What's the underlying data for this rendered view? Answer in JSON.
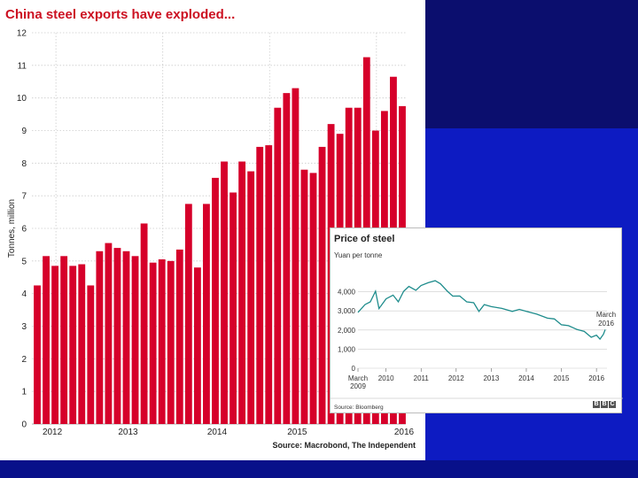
{
  "chart_data": [
    {
      "type": "bar",
      "title": "China steel exports have exploded...",
      "ylabel": "Tonnes, million",
      "xlabel": "",
      "ylim": [
        0,
        12
      ],
      "yticks": [
        0,
        1,
        2,
        3,
        4,
        5,
        6,
        7,
        8,
        9,
        10,
        11,
        12
      ],
      "xticklabels": [
        "2012",
        "2013",
        "2014",
        "2015",
        "2016"
      ],
      "source": "Source: Macrobond, The Independent",
      "values": [
        4.25,
        5.15,
        4.85,
        5.15,
        4.85,
        4.9,
        4.25,
        5.3,
        5.55,
        5.4,
        5.3,
        5.15,
        6.15,
        4.95,
        5.05,
        5.0,
        5.35,
        6.75,
        4.8,
        6.75,
        7.55,
        8.05,
        7.1,
        8.05,
        7.75,
        8.5,
        8.55,
        9.7,
        10.15,
        10.3,
        7.8,
        7.7,
        8.5,
        9.2,
        8.9,
        9.7,
        9.7,
        11.25,
        9.0,
        9.6,
        10.65,
        9.75
      ],
      "colors": {
        "bar": "#d6002a",
        "grid": "#cccccc",
        "title": "#cc1122"
      }
    },
    {
      "type": "line",
      "title": "Price of steel",
      "subtitle": "Yuan per tonne",
      "ylim": [
        0,
        5000
      ],
      "yticklabels": [
        "0",
        "1,000",
        "2,000",
        "3,000",
        "4,000"
      ],
      "yticks": [
        0,
        1000,
        2000,
        3000,
        4000
      ],
      "xticklabels": [
        "March 2009",
        "2010",
        "2011",
        "2012",
        "2013",
        "2014",
        "2015",
        "2016"
      ],
      "xtickvalues": [
        2009.2,
        2010,
        2011,
        2012,
        2013,
        2014,
        2015,
        2016
      ],
      "xlim": [
        2009.2,
        2016.3
      ],
      "annotation": "March 2016",
      "source": "Source: Bloomberg",
      "logo": "BBC",
      "series": [
        {
          "name": "Price of steel",
          "x": [
            2009.2,
            2009.4,
            2009.55,
            2009.7,
            2009.8,
            2010.0,
            2010.2,
            2010.35,
            2010.5,
            2010.65,
            2010.85,
            2011.0,
            2011.2,
            2011.4,
            2011.55,
            2011.75,
            2011.9,
            2012.1,
            2012.3,
            2012.5,
            2012.65,
            2012.8,
            2013.0,
            2013.3,
            2013.6,
            2013.8,
            2014.0,
            2014.3,
            2014.6,
            2014.8,
            2015.0,
            2015.2,
            2015.45,
            2015.65,
            2015.85,
            2016.0,
            2016.1,
            2016.2,
            2016.25
          ],
          "y": [
            2950,
            3300,
            3500,
            4000,
            3150,
            3600,
            3850,
            3450,
            4050,
            4250,
            4100,
            4300,
            4500,
            4550,
            4450,
            4000,
            3800,
            3750,
            3500,
            3400,
            3000,
            3300,
            3250,
            3100,
            3000,
            3050,
            3000,
            2800,
            2650,
            2550,
            2300,
            2200,
            2050,
            1900,
            1650,
            1700,
            1550,
            1750,
            2050
          ]
        }
      ],
      "colors": {
        "line": "#1e8c8c",
        "grid": "#cccccc"
      }
    }
  ]
}
